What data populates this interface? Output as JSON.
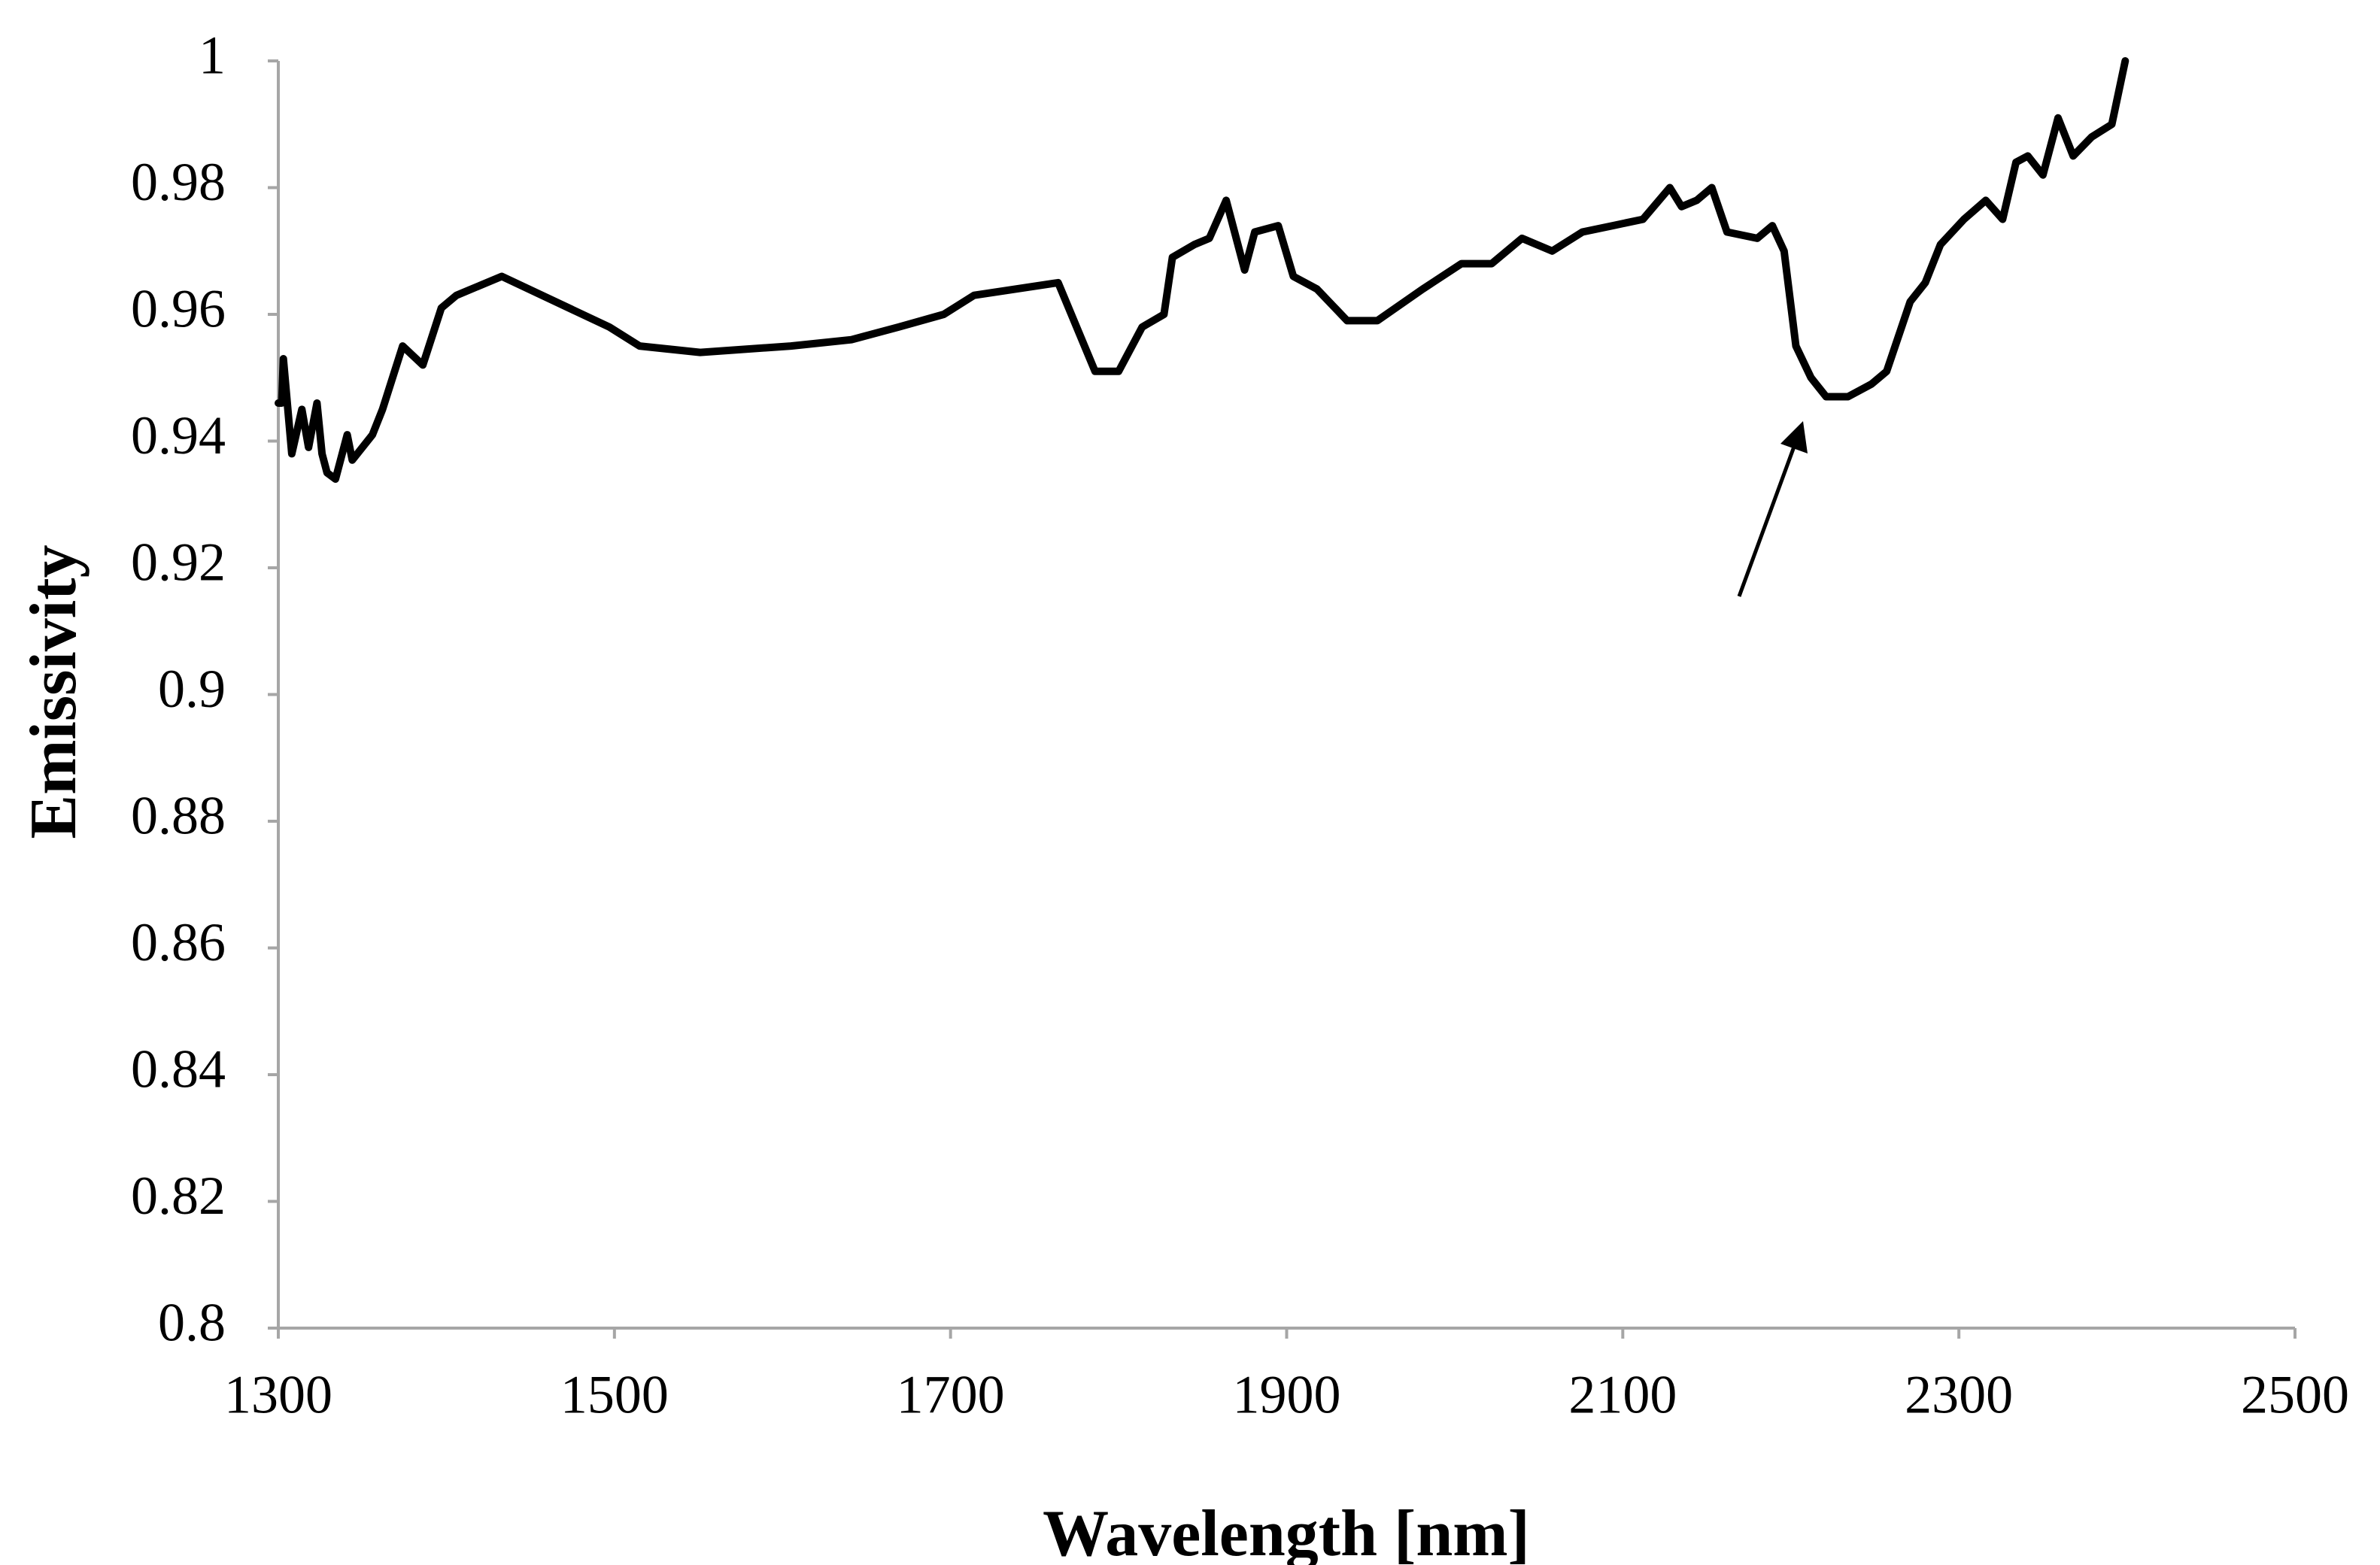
{
  "chart_data": {
    "type": "line",
    "xlabel": "Wavelength [nm]",
    "ylabel": "Emissivity",
    "x": [
      1300,
      1302,
      1303,
      1308,
      1314,
      1318,
      1323,
      1326,
      1329,
      1334,
      1341,
      1344,
      1356,
      1362,
      1374,
      1386,
      1397,
      1406,
      1433,
      1497,
      1515,
      1551,
      1605,
      1641,
      1669,
      1696,
      1714,
      1764,
      1786,
      1800,
      1814,
      1827,
      1832,
      1845,
      1854,
      1864,
      1875,
      1881,
      1895,
      1904,
      1918,
      1936,
      1954,
      1981,
      2004,
      2022,
      2040,
      2058,
      2076,
      2094,
      2112,
      2128,
      2135,
      2144,
      2153,
      2162,
      2180,
      2189,
      2196,
      2203,
      2212,
      2221,
      2234,
      2248,
      2257,
      2271,
      2280,
      2289,
      2303,
      2316,
      2326,
      2334,
      2341,
      2350,
      2359,
      2368,
      2379,
      2391,
      2399
    ],
    "series": [
      {
        "color": "#000000",
        "values": [
          0.946,
          0.946,
          0.953,
          0.938,
          0.945,
          0.939,
          0.946,
          0.938,
          0.935,
          0.934,
          0.941,
          0.937,
          0.941,
          0.945,
          0.955,
          0.952,
          0.961,
          0.963,
          0.966,
          0.958,
          0.955,
          0.954,
          0.955,
          0.956,
          0.958,
          0.96,
          0.963,
          0.965,
          0.951,
          0.951,
          0.958,
          0.96,
          0.969,
          0.971,
          0.972,
          0.978,
          0.967,
          0.973,
          0.974,
          0.966,
          0.964,
          0.959,
          0.959,
          0.964,
          0.968,
          0.968,
          0.972,
          0.97,
          0.973,
          0.974,
          0.975,
          0.98,
          0.977,
          0.978,
          0.98,
          0.973,
          0.972,
          0.974,
          0.97,
          0.955,
          0.95,
          0.947,
          0.947,
          0.949,
          0.951,
          0.962,
          0.965,
          0.971,
          0.975,
          0.978,
          0.975,
          0.984,
          0.985,
          0.982,
          0.991,
          0.985,
          0.988,
          0.99,
          1.0
        ]
      }
    ],
    "xlim": [
      1300,
      2500
    ],
    "xticks": [
      1300,
      1500,
      1700,
      1900,
      2100,
      2300,
      2500
    ],
    "ylim": [
      0.8,
      1
    ],
    "yticks": [
      0.8,
      0.82,
      0.84,
      0.86,
      0.88,
      0.9,
      0.92,
      0.94,
      0.96,
      0.98,
      1
    ]
  }
}
